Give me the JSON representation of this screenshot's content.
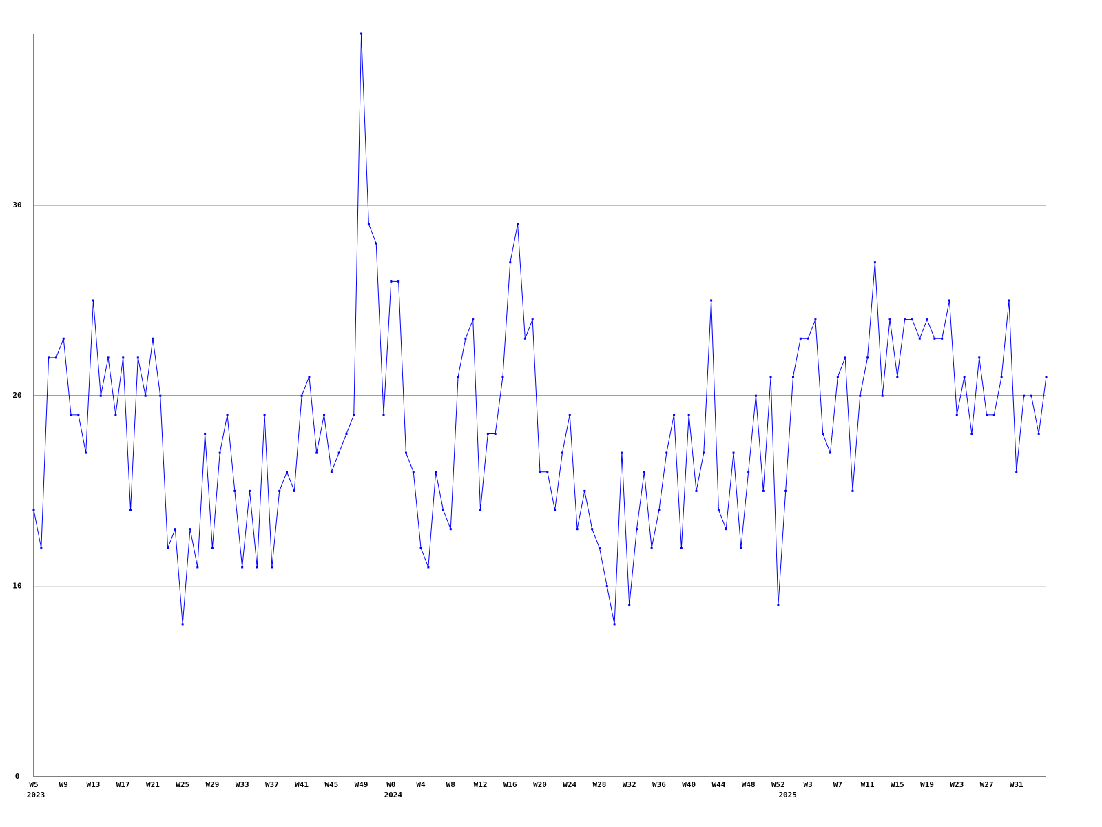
{
  "chart_data": {
    "type": "line",
    "categories": [
      "W5",
      null,
      null,
      null,
      "W9",
      null,
      null,
      null,
      "W13",
      null,
      null,
      null,
      "W17",
      null,
      null,
      null,
      "W21",
      null,
      null,
      null,
      "W25",
      null,
      null,
      null,
      "W29",
      null,
      null,
      null,
      "W33",
      null,
      null,
      null,
      "W37",
      null,
      null,
      null,
      "W41",
      null,
      null,
      null,
      "W45",
      null,
      null,
      null,
      "W49",
      null,
      null,
      null,
      "W0",
      null,
      null,
      null,
      "W4",
      null,
      null,
      null,
      "W8",
      null,
      null,
      null,
      "W12",
      null,
      null,
      null,
      "W16",
      null,
      null,
      null,
      "W20",
      null,
      null,
      null,
      "W24",
      null,
      null,
      null,
      "W28",
      null,
      null,
      null,
      "W32",
      null,
      null,
      null,
      "W36",
      null,
      null,
      null,
      "W40",
      null,
      null,
      null,
      "W44",
      null,
      null,
      null,
      "W48",
      null,
      null,
      null,
      "W52",
      null,
      null,
      null,
      "W3",
      null,
      null,
      null,
      "W7",
      null,
      null,
      null,
      "W11",
      null,
      null,
      null,
      "W15",
      null,
      null,
      null,
      "W19",
      null,
      null,
      null,
      "W23",
      null,
      null,
      null,
      "W27",
      null,
      null,
      null,
      "W31",
      null,
      null,
      null,
      null
    ],
    "category_years": [
      "2023",
      null,
      null,
      null,
      null,
      null,
      null,
      null,
      null,
      null,
      null,
      null,
      null,
      null,
      null,
      null,
      null,
      null,
      null,
      null,
      null,
      null,
      null,
      null,
      null,
      null,
      null,
      null,
      null,
      null,
      null,
      null,
      null,
      null,
      null,
      null,
      null,
      null,
      null,
      null,
      null,
      null,
      null,
      null,
      null,
      null,
      null,
      null,
      "2024",
      null,
      null,
      null,
      null,
      null,
      null,
      null,
      null,
      null,
      null,
      null,
      null,
      null,
      null,
      null,
      null,
      null,
      null,
      null,
      null,
      null,
      null,
      null,
      null,
      null,
      null,
      null,
      null,
      null,
      null,
      null,
      null,
      null,
      null,
      null,
      null,
      null,
      null,
      null,
      null,
      null,
      null,
      null,
      null,
      null,
      null,
      null,
      null,
      null,
      null,
      null,
      null,
      "2025",
      null,
      null,
      null,
      null,
      null,
      null,
      null,
      null,
      null,
      null,
      null,
      null,
      null,
      null,
      null,
      null,
      null,
      null,
      null,
      null,
      null,
      null,
      null,
      null,
      null,
      null,
      null,
      null,
      null,
      null,
      null,
      null,
      null,
      null,
      null
    ],
    "series": [
      {
        "color": "#0000ff",
        "values": [
          14,
          12,
          22,
          22,
          23,
          19,
          19,
          17,
          25,
          20,
          22,
          19,
          22,
          14,
          22,
          20,
          23,
          20,
          12,
          13,
          8,
          13,
          11,
          18,
          12,
          17,
          19,
          15,
          11,
          15,
          11,
          19,
          11,
          15,
          16,
          15,
          20,
          21,
          17,
          19,
          16,
          17,
          18,
          19,
          39,
          29,
          28,
          19,
          26,
          26,
          17,
          16,
          12,
          11,
          16,
          14,
          13,
          21,
          23,
          24,
          14,
          18,
          18,
          21,
          27,
          29,
          23,
          24,
          16,
          16,
          14,
          17,
          19,
          13,
          15,
          13,
          12,
          10,
          8,
          17,
          9,
          13,
          16,
          12,
          14,
          17,
          19,
          12,
          19,
          15,
          17,
          25,
          14,
          13,
          17,
          12,
          16,
          20,
          15,
          21,
          9,
          15,
          21,
          23,
          23,
          24,
          18,
          17,
          21,
          22,
          15,
          20,
          22,
          27,
          20,
          24,
          21,
          24,
          24,
          23,
          24,
          23,
          23,
          25,
          19,
          21,
          18,
          22,
          19,
          19,
          21,
          25,
          16,
          20,
          20,
          18,
          21
        ]
      }
    ],
    "ylim": [
      0,
      39
    ],
    "yticks": [
      0,
      10,
      20,
      30
    ],
    "grid": true
  }
}
